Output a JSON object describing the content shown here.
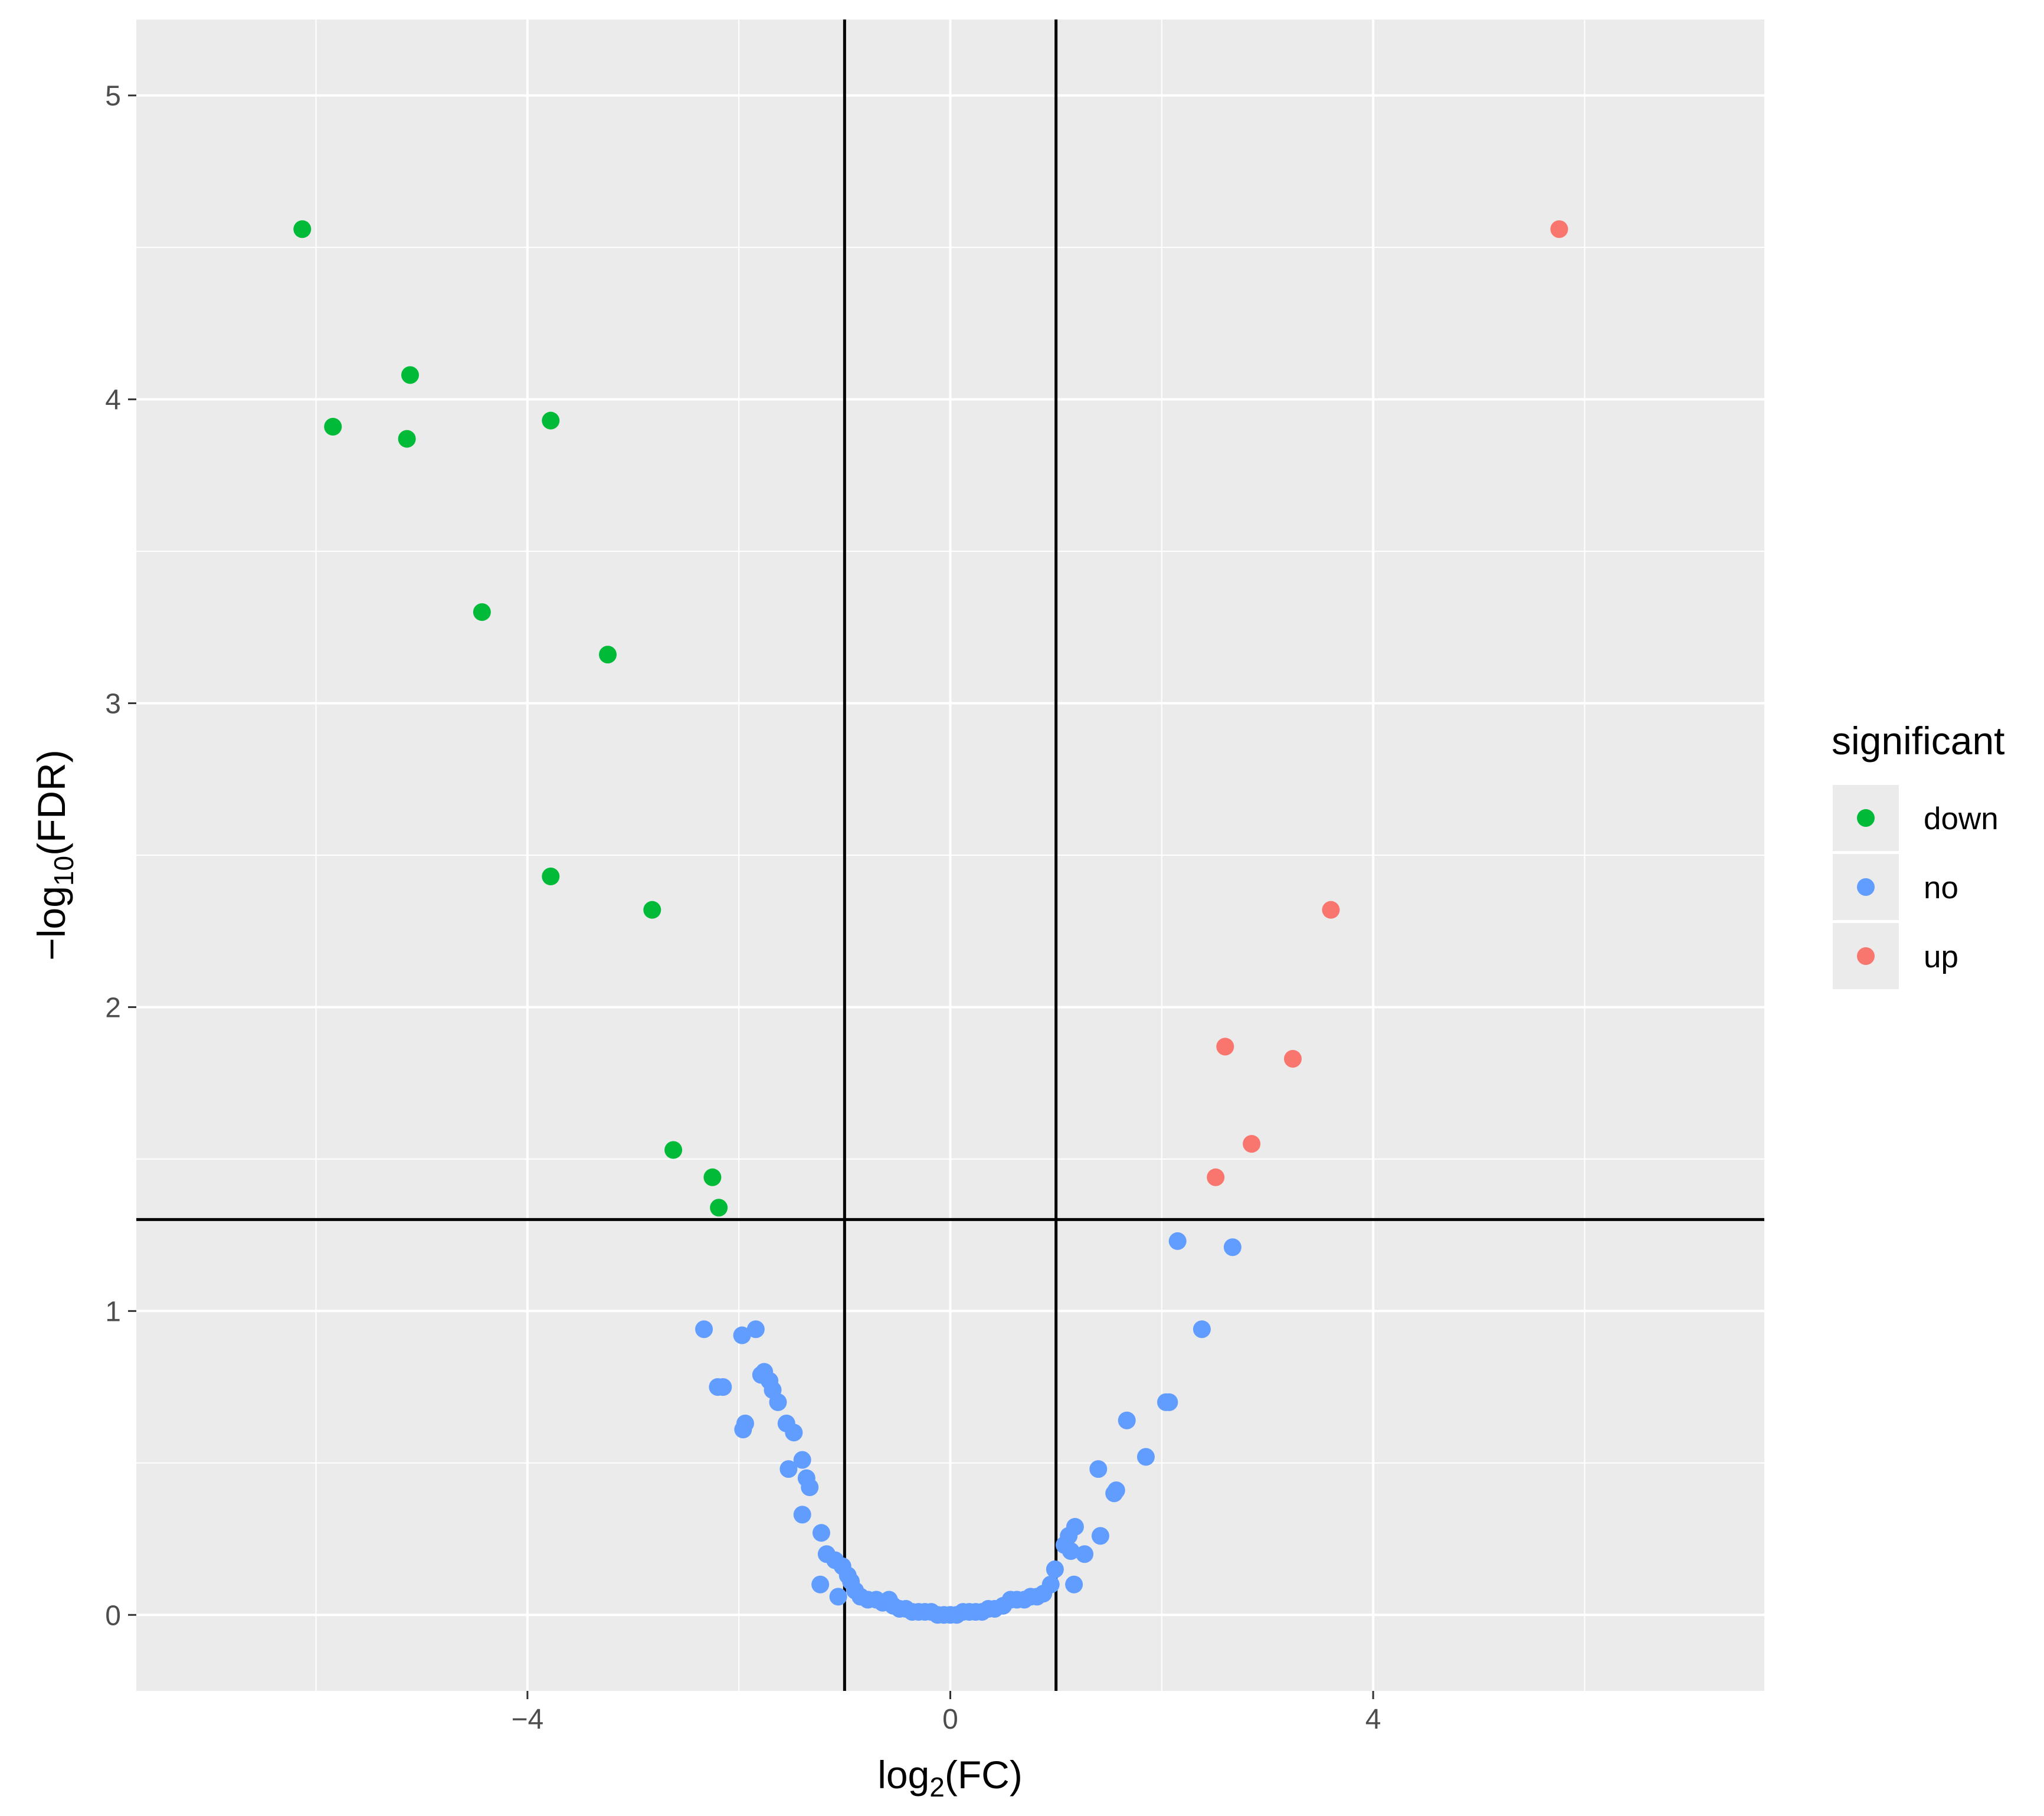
{
  "chart_data": {
    "type": "scatter",
    "xlabel_base": "log",
    "xlabel_sub": "2",
    "xlabel_rest": "(FC)",
    "ylabel_base": "−log",
    "ylabel_sub": "10",
    "ylabel_rest": "(FDR)",
    "xlim": [
      -7.7,
      7.7
    ],
    "ylim": [
      -0.25,
      5.25
    ],
    "xticks": [
      -4,
      0,
      4
    ],
    "xtick_labels": [
      "−4",
      "0",
      "4"
    ],
    "yticks": [
      0,
      1,
      2,
      3,
      4,
      5
    ],
    "ytick_labels": [
      "0",
      "1",
      "2",
      "3",
      "4",
      "5"
    ],
    "grid": true,
    "vlines": [
      -1,
      1
    ],
    "hlines": [
      1.301
    ],
    "legend": {
      "title": "significant",
      "position": "right"
    },
    "series": [
      {
        "name": "down",
        "color": "#00BA38",
        "points": [
          [
            -6.13,
            4.56
          ],
          [
            -5.84,
            3.91
          ],
          [
            -5.11,
            4.08
          ],
          [
            -5.14,
            3.87
          ],
          [
            -3.78,
            3.93
          ],
          [
            -4.43,
            3.3
          ],
          [
            -3.24,
            3.16
          ],
          [
            -3.78,
            2.43
          ],
          [
            -2.82,
            2.32
          ],
          [
            -2.62,
            1.53
          ],
          [
            -2.25,
            1.44
          ],
          [
            -2.19,
            1.34
          ]
        ]
      },
      {
        "name": "no",
        "color": "#619CFF",
        "points": [
          [
            -2.33,
            0.94
          ],
          [
            -1.84,
            0.94
          ],
          [
            -1.97,
            0.92
          ],
          [
            -2.2,
            0.75
          ],
          [
            -2.15,
            0.75
          ],
          [
            -1.76,
            0.8
          ],
          [
            -1.79,
            0.79
          ],
          [
            -1.71,
            0.77
          ],
          [
            -1.68,
            0.74
          ],
          [
            -1.63,
            0.7
          ],
          [
            -1.94,
            0.63
          ],
          [
            -1.96,
            0.61
          ],
          [
            -1.55,
            0.63
          ],
          [
            -1.48,
            0.6
          ],
          [
            -1.4,
            0.51
          ],
          [
            -1.53,
            0.48
          ],
          [
            -1.36,
            0.45
          ],
          [
            -1.33,
            0.42
          ],
          [
            -1.4,
            0.33
          ],
          [
            -1.22,
            0.27
          ],
          [
            -1.17,
            0.2
          ],
          [
            -1.09,
            0.18
          ],
          [
            -1.02,
            0.16
          ],
          [
            -0.97,
            0.13
          ],
          [
            -0.94,
            0.11
          ],
          [
            -1.23,
            0.1
          ],
          [
            -0.9,
            0.08
          ],
          [
            -0.85,
            0.06
          ],
          [
            -1.06,
            0.06
          ],
          [
            -0.78,
            0.05
          ],
          [
            -0.7,
            0.05
          ],
          [
            -0.64,
            0.04
          ],
          [
            -0.58,
            0.05
          ],
          [
            -0.54,
            0.03
          ],
          [
            -0.48,
            0.02
          ],
          [
            -0.42,
            0.02
          ],
          [
            -0.36,
            0.01
          ],
          [
            -0.3,
            0.01
          ],
          [
            -0.24,
            0.01
          ],
          [
            -0.18,
            0.01
          ],
          [
            -0.12,
            0.0
          ],
          [
            -0.06,
            0.0
          ],
          [
            0.0,
            0.0
          ],
          [
            0.06,
            0.0
          ],
          [
            0.12,
            0.01
          ],
          [
            0.18,
            0.01
          ],
          [
            0.24,
            0.01
          ],
          [
            0.3,
            0.01
          ],
          [
            0.36,
            0.02
          ],
          [
            0.42,
            0.02
          ],
          [
            0.5,
            0.03
          ],
          [
            0.57,
            0.05
          ],
          [
            0.63,
            0.05
          ],
          [
            0.7,
            0.05
          ],
          [
            0.76,
            0.06
          ],
          [
            0.82,
            0.06
          ],
          [
            0.88,
            0.07
          ],
          [
            0.95,
            0.1
          ],
          [
            0.99,
            0.15
          ],
          [
            1.08,
            0.23
          ],
          [
            1.12,
            0.26
          ],
          [
            1.18,
            0.29
          ],
          [
            1.14,
            0.21
          ],
          [
            1.27,
            0.2
          ],
          [
            1.17,
            0.1
          ],
          [
            1.42,
            0.26
          ],
          [
            1.4,
            0.48
          ],
          [
            1.57,
            0.41
          ],
          [
            1.55,
            0.4
          ],
          [
            1.67,
            0.64
          ],
          [
            1.85,
            0.52
          ],
          [
            2.07,
            0.7
          ],
          [
            2.04,
            0.7
          ],
          [
            2.38,
            0.94
          ],
          [
            2.15,
            1.23
          ],
          [
            2.67,
            1.21
          ]
        ]
      },
      {
        "name": "up",
        "color": "#F8766D",
        "points": [
          [
            5.76,
            4.56
          ],
          [
            3.6,
            2.32
          ],
          [
            2.6,
            1.87
          ],
          [
            3.24,
            1.83
          ],
          [
            2.85,
            1.55
          ],
          [
            2.51,
            1.44
          ]
        ]
      }
    ]
  }
}
